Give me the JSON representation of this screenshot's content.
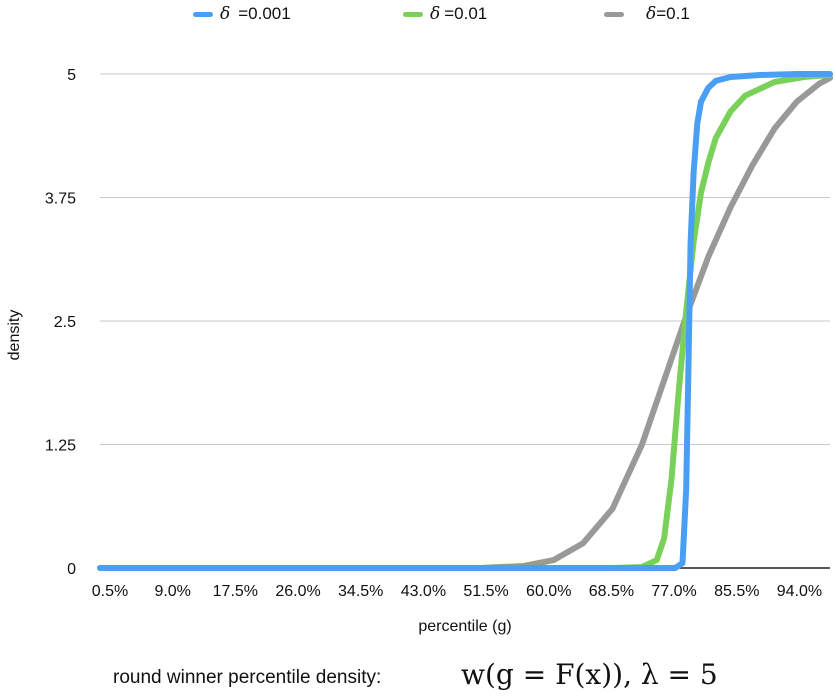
{
  "chart_data": {
    "type": "line",
    "title": "",
    "xlabel": "percentile (g)",
    "ylabel": "density",
    "ylim": [
      0,
      5
    ],
    "yticks": [
      "0",
      "1.25",
      "2.5",
      "3.75",
      "5"
    ],
    "xticks": [
      "0.5%",
      "9.0%",
      "17.5%",
      "26.0%",
      "34.5%",
      "43.0%",
      "51.5%",
      "60.0%",
      "68.5%",
      "77.0%",
      "85.5%",
      "94.0%"
    ],
    "xlim": [
      0.5,
      99.5
    ],
    "grid": "horizontal",
    "legend_position": "top",
    "series": [
      {
        "name": "=0.001",
        "symbol": "δ",
        "color": "#4a9ff5",
        "x": [
          0.5,
          60,
          76,
          78.5,
          79.5,
          80,
          80.3,
          80.6,
          81,
          81.5,
          82,
          83,
          84,
          86,
          90,
          95,
          99.5
        ],
        "y": [
          0,
          0,
          0,
          0,
          0.05,
          0.8,
          2.0,
          3.3,
          4.0,
          4.5,
          4.72,
          4.86,
          4.93,
          4.97,
          4.99,
          5.0,
          5.0
        ]
      },
      {
        "name": "=0.01",
        "symbol": "δ",
        "color": "#7ad15a",
        "x": [
          0.5,
          70,
          74,
          76,
          77,
          78,
          79,
          80,
          81,
          82,
          83,
          84,
          86,
          88,
          92,
          96,
          99.5
        ],
        "y": [
          0,
          0,
          0.01,
          0.08,
          0.3,
          0.9,
          1.8,
          2.6,
          3.3,
          3.8,
          4.1,
          4.35,
          4.62,
          4.78,
          4.92,
          4.97,
          4.99
        ]
      },
      {
        "name": "=0.1",
        "symbol": "δ",
        "color": "#999999",
        "x": [
          0.5,
          52,
          58,
          62,
          66,
          70,
          74,
          77,
          80,
          83,
          86,
          89,
          92,
          95,
          98,
          99.5
        ],
        "y": [
          0,
          0,
          0.02,
          0.08,
          0.25,
          0.6,
          1.25,
          1.9,
          2.55,
          3.15,
          3.65,
          4.08,
          4.45,
          4.72,
          4.9,
          4.96
        ]
      }
    ]
  },
  "caption": {
    "text": "round winner percentile density:",
    "formula": "w(g = F(x)), λ = 5"
  }
}
